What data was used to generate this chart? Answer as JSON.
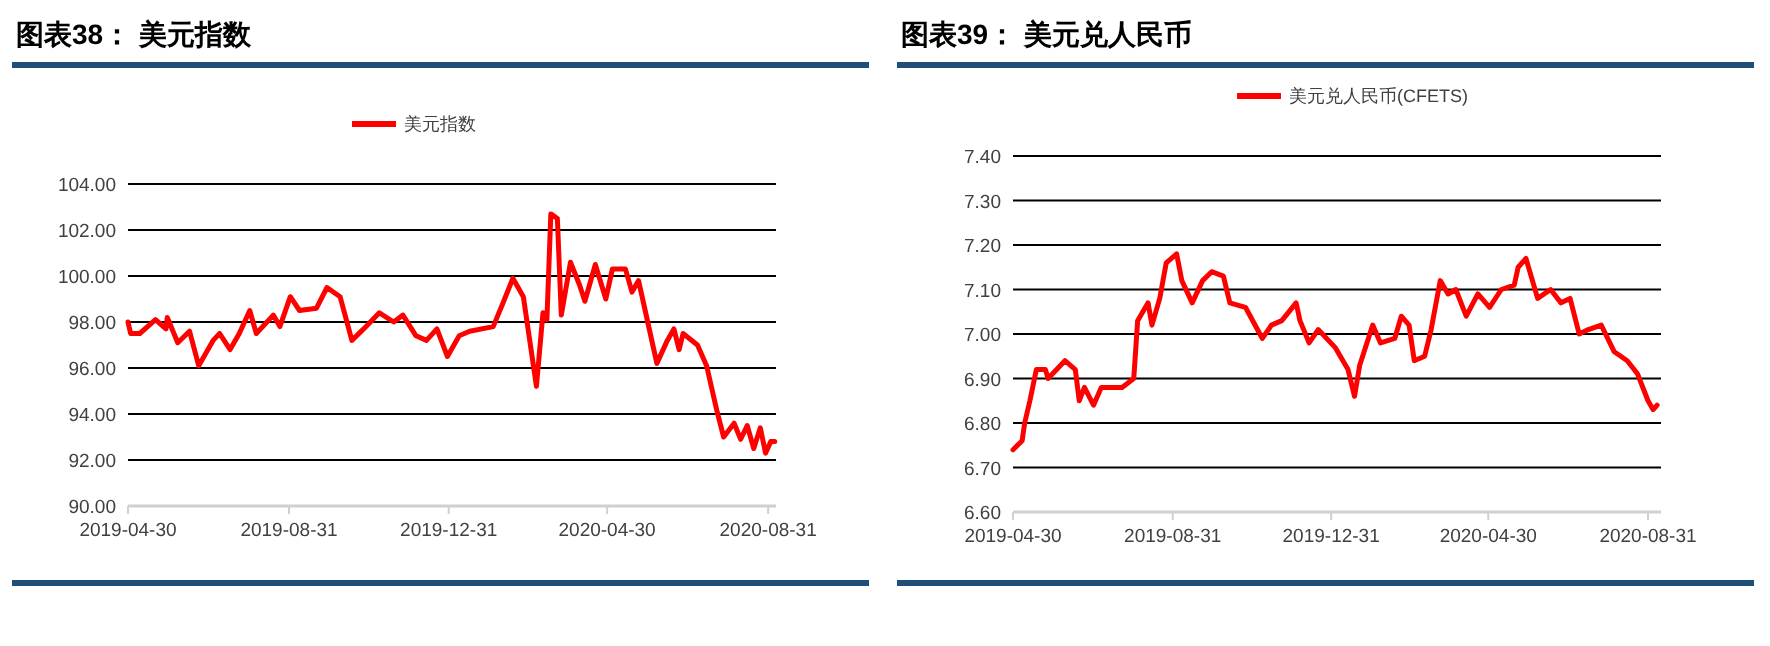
{
  "chart_data": [
    {
      "type": "line",
      "title": "图表38： 美元指数",
      "legend": "top",
      "grid": "y",
      "xlim": [
        "2019-04-30",
        "2020-09-06"
      ],
      "xticks": [
        {
          "value": "2019-04-30",
          "label": "2019-04-30"
        },
        {
          "value": "2019-08-31",
          "label": "2019-08-31"
        },
        {
          "value": "2019-12-31",
          "label": "2019-12-31"
        },
        {
          "value": "2020-04-30",
          "label": "2020-04-30"
        },
        {
          "value": "2020-08-31",
          "label": "2020-08-31"
        }
      ],
      "ylim": [
        90,
        104
      ],
      "yticks": [
        {
          "value": 90,
          "label": "90.00"
        },
        {
          "value": 92,
          "label": "92.00"
        },
        {
          "value": 94,
          "label": "94.00"
        },
        {
          "value": 96,
          "label": "96.00"
        },
        {
          "value": 98,
          "label": "98.00"
        },
        {
          "value": 100,
          "label": "100.00"
        },
        {
          "value": 102,
          "label": "102.00"
        },
        {
          "value": 104,
          "label": "104.00"
        }
      ],
      "x": [
        "2019-04-30",
        "2019-05-02",
        "2019-05-09",
        "2019-05-21",
        "2019-05-29",
        "2019-05-30",
        "2019-06-07",
        "2019-06-16",
        "2019-06-23",
        "2019-07-04",
        "2019-07-09",
        "2019-07-17",
        "2019-07-24",
        "2019-08-01",
        "2019-08-06",
        "2019-08-19",
        "2019-08-24",
        "2019-09-01",
        "2019-09-08",
        "2019-09-21",
        "2019-09-29",
        "2019-10-09",
        "2019-10-18",
        "2019-10-27",
        "2019-11-08",
        "2019-11-19",
        "2019-11-26",
        "2019-12-06",
        "2019-12-14",
        "2019-12-22",
        "2019-12-30",
        "2020-01-08",
        "2020-01-16",
        "2020-02-03",
        "2020-02-11",
        "2020-02-18",
        "2020-02-26",
        "2020-03-07",
        "2020-03-12",
        "2020-03-15",
        "2020-03-18",
        "2020-03-23",
        "2020-03-26",
        "2020-04-02",
        "2020-04-09",
        "2020-04-13",
        "2020-04-21",
        "2020-04-29",
        "2020-05-04",
        "2020-05-14",
        "2020-05-19",
        "2020-05-24",
        "2020-06-07",
        "2020-06-15",
        "2020-06-20",
        "2020-06-24",
        "2020-06-27",
        "2020-07-08",
        "2020-07-15",
        "2020-07-23",
        "2020-07-28",
        "2020-08-05",
        "2020-08-10",
        "2020-08-15",
        "2020-08-20",
        "2020-08-25",
        "2020-08-29",
        "2020-09-02",
        "2020-09-05"
      ],
      "series": [
        {
          "name": "美元指数",
          "color": "#ff0000",
          "values": [
            98.0,
            97.5,
            97.5,
            98.1,
            97.7,
            98.2,
            97.1,
            97.6,
            96.1,
            97.2,
            97.5,
            96.8,
            97.5,
            98.5,
            97.5,
            98.3,
            97.8,
            99.1,
            98.5,
            98.6,
            99.5,
            99.1,
            97.2,
            97.7,
            98.4,
            98.0,
            98.3,
            97.4,
            97.2,
            97.7,
            96.5,
            97.4,
            97.6,
            97.8,
            98.9,
            99.9,
            99.1,
            95.2,
            98.4,
            98.1,
            102.7,
            102.5,
            98.3,
            100.6,
            99.6,
            98.9,
            100.5,
            99.0,
            100.3,
            100.3,
            99.3,
            99.8,
            96.2,
            97.2,
            97.7,
            96.8,
            97.5,
            97.0,
            96.1,
            94.1,
            93.0,
            93.6,
            92.9,
            93.5,
            92.5,
            93.4,
            92.3,
            92.8,
            92.8
          ]
        }
      ]
    },
    {
      "type": "line",
      "title": "图表39： 美元兑人民币",
      "legend": "top",
      "grid": "y",
      "xlim": [
        "2019-04-30",
        "2020-09-10"
      ],
      "xticks": [
        {
          "value": "2019-04-30",
          "label": "2019-04-30"
        },
        {
          "value": "2019-08-31",
          "label": "2019-08-31"
        },
        {
          "value": "2019-12-31",
          "label": "2019-12-31"
        },
        {
          "value": "2020-04-30",
          "label": "2020-04-30"
        },
        {
          "value": "2020-08-31",
          "label": "2020-08-31"
        }
      ],
      "ylim": [
        6.6,
        7.4
      ],
      "yticks": [
        {
          "value": 6.6,
          "label": "6.60"
        },
        {
          "value": 6.7,
          "label": "6.70"
        },
        {
          "value": 6.8,
          "label": "6.80"
        },
        {
          "value": 6.9,
          "label": "6.90"
        },
        {
          "value": 7.0,
          "label": "7.00"
        },
        {
          "value": 7.1,
          "label": "7.10"
        },
        {
          "value": 7.2,
          "label": "7.20"
        },
        {
          "value": 7.3,
          "label": "7.30"
        },
        {
          "value": 7.4,
          "label": "7.40"
        }
      ],
      "x": [
        "2019-04-30",
        "2019-05-07",
        "2019-05-09",
        "2019-05-13",
        "2019-05-18",
        "2019-05-25",
        "2019-05-27",
        "2019-06-09",
        "2019-06-17",
        "2019-06-20",
        "2019-06-24",
        "2019-07-01",
        "2019-07-07",
        "2019-07-23",
        "2019-08-01",
        "2019-08-04",
        "2019-08-12",
        "2019-08-15",
        "2019-08-21",
        "2019-08-26",
        "2019-09-03",
        "2019-09-07",
        "2019-09-15",
        "2019-09-23",
        "2019-09-30",
        "2019-10-09",
        "2019-10-14",
        "2019-10-26",
        "2019-11-08",
        "2019-11-15",
        "2019-11-23",
        "2019-12-04",
        "2019-12-07",
        "2019-12-14",
        "2019-12-21",
        "2020-01-03",
        "2020-01-13",
        "2020-01-18",
        "2020-01-22",
        "2020-02-01",
        "2020-02-07",
        "2020-02-18",
        "2020-02-23",
        "2020-02-29",
        "2020-03-04",
        "2020-03-12",
        "2020-03-17",
        "2020-03-24",
        "2020-03-30",
        "2020-04-05",
        "2020-04-13",
        "2020-04-22",
        "2020-05-01",
        "2020-05-10",
        "2020-05-20",
        "2020-05-23",
        "2020-05-29",
        "2020-06-07",
        "2020-06-17",
        "2020-06-25",
        "2020-07-02",
        "2020-07-09",
        "2020-07-16",
        "2020-07-26",
        "2020-08-05",
        "2020-08-15",
        "2020-08-23",
        "2020-08-31",
        "2020-09-04",
        "2020-09-07"
      ],
      "series": [
        {
          "name": "美元兑人民币(CFETS)",
          "color": "#ff0000",
          "values": [
            6.74,
            6.76,
            6.8,
            6.85,
            6.92,
            6.92,
            6.9,
            6.94,
            6.92,
            6.85,
            6.88,
            6.84,
            6.88,
            6.88,
            6.9,
            7.03,
            7.07,
            7.02,
            7.08,
            7.16,
            7.18,
            7.12,
            7.07,
            7.12,
            7.14,
            7.13,
            7.07,
            7.06,
            6.99,
            7.02,
            7.03,
            7.07,
            7.03,
            6.98,
            7.01,
            6.97,
            6.92,
            6.86,
            6.93,
            7.02,
            6.98,
            6.99,
            7.04,
            7.02,
            6.94,
            6.95,
            7.01,
            7.12,
            7.09,
            7.1,
            7.04,
            7.09,
            7.06,
            7.1,
            7.11,
            7.15,
            7.17,
            7.08,
            7.1,
            7.07,
            7.08,
            7.0,
            7.01,
            7.02,
            6.96,
            6.94,
            6.91,
            6.85,
            6.83,
            6.84
          ]
        }
      ]
    }
  ]
}
